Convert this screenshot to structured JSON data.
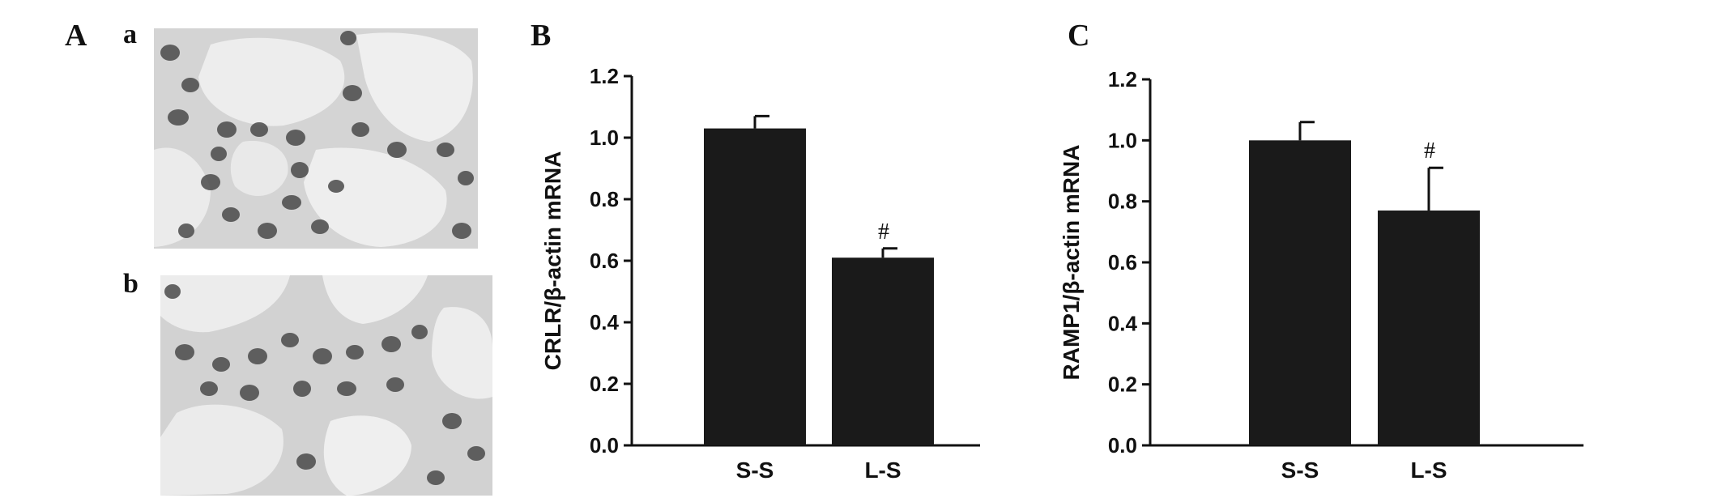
{
  "panels": {
    "A": {
      "letter": "A",
      "sub_a": "a",
      "sub_b": "b"
    },
    "B": {
      "letter": "B"
    },
    "C": {
      "letter": "C"
    }
  },
  "colors": {
    "bar": "#1a1a1a",
    "axis": "#111111",
    "micrograph_bg": "#e6e6e6",
    "nuclei": "#4a4a4a"
  },
  "chart_data": [
    {
      "type": "bar",
      "panel": "B",
      "title": "",
      "xlabel": "",
      "ylabel": "CRLR/β-actin mRNA",
      "categories": [
        "S-S",
        "L-S"
      ],
      "values": [
        1.03,
        0.61
      ],
      "errors": [
        0.04,
        0.03
      ],
      "annotations": [
        "",
        "#"
      ],
      "ylim": [
        0.0,
        1.2
      ],
      "yticks": [
        "0.0",
        "0.2",
        "0.4",
        "0.6",
        "0.8",
        "1.0",
        "1.2"
      ],
      "grid": false
    },
    {
      "type": "bar",
      "panel": "C",
      "title": "",
      "xlabel": "",
      "ylabel": "RAMP1/β-actin mRNA",
      "categories": [
        "S-S",
        "L-S"
      ],
      "values": [
        1.0,
        0.77
      ],
      "errors": [
        0.06,
        0.14
      ],
      "annotations": [
        "",
        "#"
      ],
      "ylim": [
        0.0,
        1.2
      ],
      "yticks": [
        "0.0",
        "0.2",
        "0.4",
        "0.6",
        "0.8",
        "1.0",
        "1.2"
      ],
      "grid": false
    }
  ]
}
